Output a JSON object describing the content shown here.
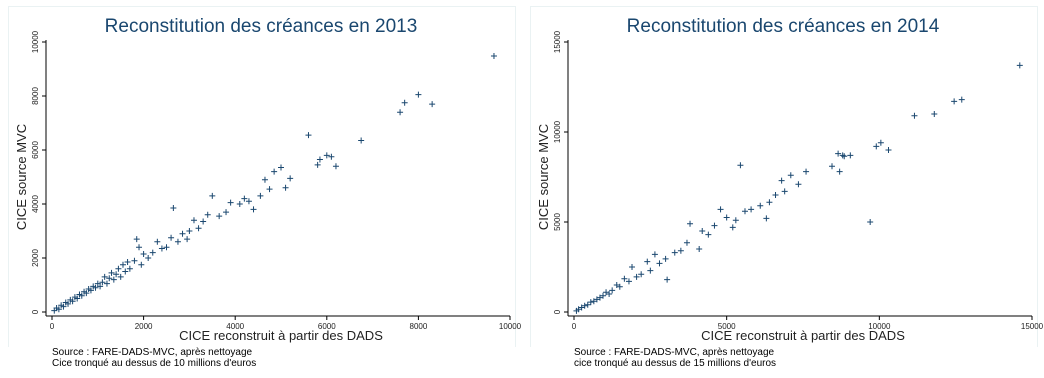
{
  "chart_data": [
    {
      "type": "scatter",
      "title": "Reconstitution des créances en 2013",
      "xlabel": "CICE reconstruit à partir des DADS",
      "ylabel": "CICE source MVC",
      "xlim": [
        0,
        10000
      ],
      "ylim": [
        0,
        10000
      ],
      "xticks": [
        0,
        2000,
        4000,
        6000,
        8000,
        10000
      ],
      "yticks": [
        0,
        2000,
        4000,
        6000,
        8000,
        10000
      ],
      "notes": [
        "Source : FARE-DADS-MVC, après nettoyage",
        "Cice tronqué au dessus de 10 millions d'euros"
      ],
      "color": "#1a476f",
      "marker": "plus",
      "points": [
        [
          9650,
          9480
        ],
        [
          8300,
          7700
        ],
        [
          8000,
          8050
        ],
        [
          7700,
          7750
        ],
        [
          7600,
          7400
        ],
        [
          6750,
          6350
        ],
        [
          6200,
          5400
        ],
        [
          6100,
          5750
        ],
        [
          6000,
          5800
        ],
        [
          5850,
          5650
        ],
        [
          5800,
          5450
        ],
        [
          5600,
          6550
        ],
        [
          5200,
          4950
        ],
        [
          5100,
          4600
        ],
        [
          5000,
          5350
        ],
        [
          4850,
          5200
        ],
        [
          4750,
          4550
        ],
        [
          4650,
          4900
        ],
        [
          4550,
          4300
        ],
        [
          4400,
          3800
        ],
        [
          4300,
          4100
        ],
        [
          4200,
          4200
        ],
        [
          4100,
          4000
        ],
        [
          3900,
          4050
        ],
        [
          3800,
          3700
        ],
        [
          3650,
          3550
        ],
        [
          3500,
          4300
        ],
        [
          3400,
          3600
        ],
        [
          3300,
          3350
        ],
        [
          3200,
          3100
        ],
        [
          3100,
          3400
        ],
        [
          3000,
          3000
        ],
        [
          2950,
          2700
        ],
        [
          2850,
          2900
        ],
        [
          2750,
          2600
        ],
        [
          2650,
          3850
        ],
        [
          2600,
          2750
        ],
        [
          2500,
          2400
        ],
        [
          2400,
          2350
        ],
        [
          2300,
          2600
        ],
        [
          2200,
          2200
        ],
        [
          2100,
          2000
        ],
        [
          2000,
          2150
        ],
        [
          1950,
          1750
        ],
        [
          1900,
          2400
        ],
        [
          1850,
          2700
        ],
        [
          1800,
          1900
        ],
        [
          1700,
          1600
        ],
        [
          1650,
          1850
        ],
        [
          1600,
          1500
        ],
        [
          1550,
          1750
        ],
        [
          1500,
          1300
        ],
        [
          1450,
          1600
        ],
        [
          1400,
          1400
        ],
        [
          1350,
          1200
        ],
        [
          1300,
          1450
        ],
        [
          1250,
          1250
        ],
        [
          1200,
          1050
        ],
        [
          1150,
          1300
        ],
        [
          1100,
          1100
        ],
        [
          1050,
          950
        ],
        [
          1000,
          1050
        ],
        [
          950,
          900
        ],
        [
          900,
          950
        ],
        [
          850,
          800
        ],
        [
          800,
          850
        ],
        [
          750,
          700
        ],
        [
          700,
          750
        ],
        [
          650,
          600
        ],
        [
          600,
          650
        ],
        [
          550,
          500
        ],
        [
          500,
          550
        ],
        [
          450,
          400
        ],
        [
          400,
          450
        ],
        [
          350,
          300
        ],
        [
          300,
          350
        ],
        [
          250,
          200
        ],
        [
          200,
          250
        ],
        [
          150,
          100
        ],
        [
          100,
          150
        ],
        [
          50,
          50
        ]
      ]
    },
    {
      "type": "scatter",
      "title": "Reconstitution des créances en 2014",
      "xlabel": "CICE reconstruit à partir des DADS",
      "ylabel": "CICE source MVC",
      "xlim": [
        0,
        15000
      ],
      "ylim": [
        0,
        15000
      ],
      "xticks": [
        0,
        5000,
        10000,
        15000
      ],
      "yticks": [
        0,
        5000,
        10000,
        15000
      ],
      "notes": [
        "Source : FARE-DADS-MVC, après nettoyage",
        "cice tronqué au dessus de 15 millions d'euros"
      ],
      "color": "#1a476f",
      "marker": "plus",
      "points": [
        [
          14600,
          13700
        ],
        [
          12700,
          11800
        ],
        [
          12450,
          11700
        ],
        [
          11800,
          11000
        ],
        [
          11150,
          10900
        ],
        [
          10300,
          9000
        ],
        [
          10050,
          9400
        ],
        [
          9900,
          9200
        ],
        [
          9700,
          5000
        ],
        [
          9050,
          8700
        ],
        [
          8850,
          8650
        ],
        [
          8800,
          8700
        ],
        [
          8700,
          7800
        ],
        [
          8650,
          8800
        ],
        [
          8450,
          8100
        ],
        [
          7600,
          7800
        ],
        [
          7350,
          7100
        ],
        [
          7100,
          7600
        ],
        [
          6900,
          6700
        ],
        [
          6800,
          7300
        ],
        [
          6600,
          6500
        ],
        [
          6400,
          6100
        ],
        [
          6300,
          5200
        ],
        [
          6100,
          5900
        ],
        [
          5800,
          5700
        ],
        [
          5600,
          5600
        ],
        [
          5450,
          8150
        ],
        [
          5300,
          5100
        ],
        [
          5200,
          4700
        ],
        [
          5000,
          5250
        ],
        [
          4800,
          5700
        ],
        [
          4600,
          4800
        ],
        [
          4400,
          4300
        ],
        [
          4200,
          4500
        ],
        [
          4100,
          3500
        ],
        [
          3800,
          4900
        ],
        [
          3700,
          3850
        ],
        [
          3500,
          3400
        ],
        [
          3300,
          3300
        ],
        [
          3050,
          1800
        ],
        [
          3000,
          2950
        ],
        [
          2800,
          2700
        ],
        [
          2650,
          3200
        ],
        [
          2500,
          2300
        ],
        [
          2400,
          2800
        ],
        [
          2200,
          2100
        ],
        [
          2050,
          1950
        ],
        [
          1900,
          2500
        ],
        [
          1800,
          1700
        ],
        [
          1650,
          1850
        ],
        [
          1500,
          1400
        ],
        [
          1400,
          1500
        ],
        [
          1250,
          1200
        ],
        [
          1150,
          1000
        ],
        [
          1050,
          1100
        ],
        [
          950,
          900
        ],
        [
          850,
          800
        ],
        [
          750,
          700
        ],
        [
          650,
          600
        ],
        [
          550,
          550
        ],
        [
          450,
          400
        ],
        [
          350,
          350
        ],
        [
          250,
          250
        ],
        [
          150,
          150
        ],
        [
          80,
          60
        ]
      ]
    }
  ]
}
